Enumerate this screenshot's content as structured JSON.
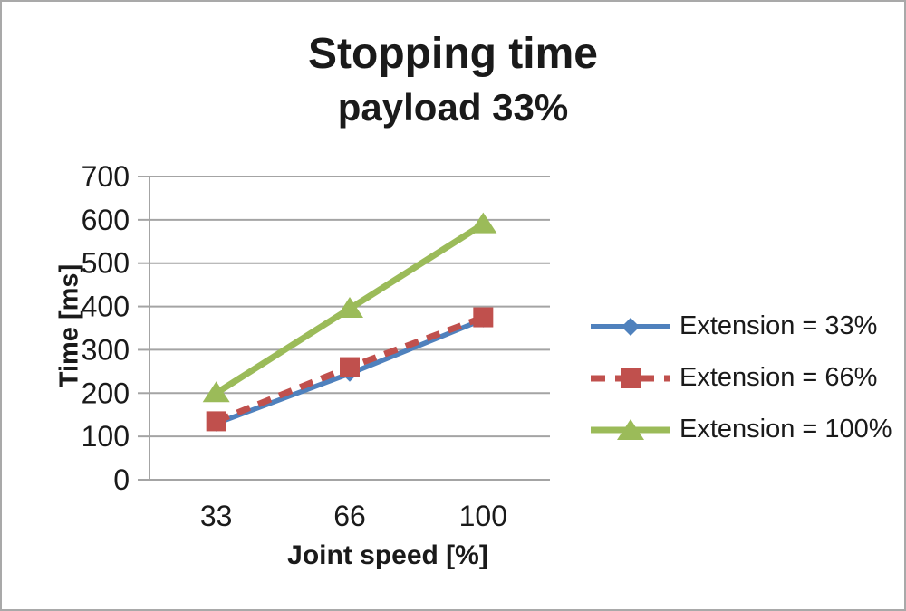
{
  "chart_data": {
    "type": "line",
    "title": "Stopping time",
    "subtitle": "payload 33%",
    "xlabel": "Joint speed [%]",
    "ylabel": "Time [ms]",
    "categories": [
      "33",
      "66",
      "100"
    ],
    "series": [
      {
        "name": "Extension = 33%",
        "values": [
          130,
          245,
          370
        ],
        "color": "#4F81BD",
        "marker": "diamond",
        "dash": "solid"
      },
      {
        "name": "Extension = 66%",
        "values": [
          135,
          260,
          375
        ],
        "color": "#C0504D",
        "marker": "square",
        "dash": "dashed"
      },
      {
        "name": "Extension = 100%",
        "values": [
          200,
          395,
          590
        ],
        "color": "#9BBB59",
        "marker": "triangle",
        "dash": "solid"
      }
    ],
    "ylim": [
      0,
      700
    ],
    "yticks": [
      0,
      100,
      200,
      300,
      400,
      500,
      600,
      700
    ],
    "grid": true,
    "legend_position": "right",
    "colors": {
      "grid": "#A4A4A4",
      "axis": "#A4A4A4",
      "text": "#1a1a1a",
      "background": "#FFFFFF",
      "border": "#A9A9A9"
    }
  }
}
